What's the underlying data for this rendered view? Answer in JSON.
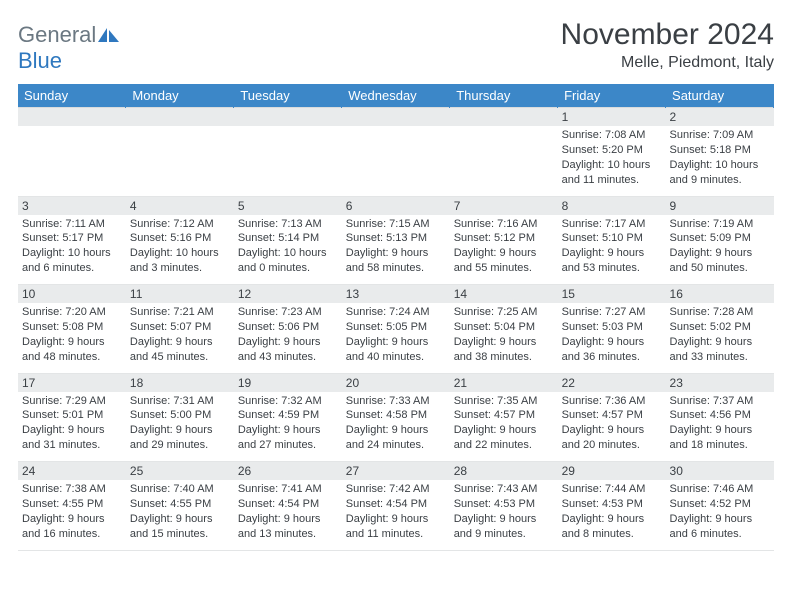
{
  "logo": {
    "text_gray": "General",
    "text_blue": "Blue"
  },
  "title": "November 2024",
  "location": "Melle, Piedmont, Italy",
  "colors": {
    "header_bg": "#3c87c8",
    "header_fg": "#ffffff",
    "daynum_bg": "#e9ebec",
    "text": "#3a3f44",
    "logo_gray": "#6b7882",
    "logo_blue": "#2f78bf"
  },
  "weekdays": [
    "Sunday",
    "Monday",
    "Tuesday",
    "Wednesday",
    "Thursday",
    "Friday",
    "Saturday"
  ],
  "weeks": [
    [
      {
        "n": "",
        "sunrise": "",
        "sunset": "",
        "daylight": ""
      },
      {
        "n": "",
        "sunrise": "",
        "sunset": "",
        "daylight": ""
      },
      {
        "n": "",
        "sunrise": "",
        "sunset": "",
        "daylight": ""
      },
      {
        "n": "",
        "sunrise": "",
        "sunset": "",
        "daylight": ""
      },
      {
        "n": "",
        "sunrise": "",
        "sunset": "",
        "daylight": ""
      },
      {
        "n": "1",
        "sunrise": "Sunrise: 7:08 AM",
        "sunset": "Sunset: 5:20 PM",
        "daylight": "Daylight: 10 hours and 11 minutes."
      },
      {
        "n": "2",
        "sunrise": "Sunrise: 7:09 AM",
        "sunset": "Sunset: 5:18 PM",
        "daylight": "Daylight: 10 hours and 9 minutes."
      }
    ],
    [
      {
        "n": "3",
        "sunrise": "Sunrise: 7:11 AM",
        "sunset": "Sunset: 5:17 PM",
        "daylight": "Daylight: 10 hours and 6 minutes."
      },
      {
        "n": "4",
        "sunrise": "Sunrise: 7:12 AM",
        "sunset": "Sunset: 5:16 PM",
        "daylight": "Daylight: 10 hours and 3 minutes."
      },
      {
        "n": "5",
        "sunrise": "Sunrise: 7:13 AM",
        "sunset": "Sunset: 5:14 PM",
        "daylight": "Daylight: 10 hours and 0 minutes."
      },
      {
        "n": "6",
        "sunrise": "Sunrise: 7:15 AM",
        "sunset": "Sunset: 5:13 PM",
        "daylight": "Daylight: 9 hours and 58 minutes."
      },
      {
        "n": "7",
        "sunrise": "Sunrise: 7:16 AM",
        "sunset": "Sunset: 5:12 PM",
        "daylight": "Daylight: 9 hours and 55 minutes."
      },
      {
        "n": "8",
        "sunrise": "Sunrise: 7:17 AM",
        "sunset": "Sunset: 5:10 PM",
        "daylight": "Daylight: 9 hours and 53 minutes."
      },
      {
        "n": "9",
        "sunrise": "Sunrise: 7:19 AM",
        "sunset": "Sunset: 5:09 PM",
        "daylight": "Daylight: 9 hours and 50 minutes."
      }
    ],
    [
      {
        "n": "10",
        "sunrise": "Sunrise: 7:20 AM",
        "sunset": "Sunset: 5:08 PM",
        "daylight": "Daylight: 9 hours and 48 minutes."
      },
      {
        "n": "11",
        "sunrise": "Sunrise: 7:21 AM",
        "sunset": "Sunset: 5:07 PM",
        "daylight": "Daylight: 9 hours and 45 minutes."
      },
      {
        "n": "12",
        "sunrise": "Sunrise: 7:23 AM",
        "sunset": "Sunset: 5:06 PM",
        "daylight": "Daylight: 9 hours and 43 minutes."
      },
      {
        "n": "13",
        "sunrise": "Sunrise: 7:24 AM",
        "sunset": "Sunset: 5:05 PM",
        "daylight": "Daylight: 9 hours and 40 minutes."
      },
      {
        "n": "14",
        "sunrise": "Sunrise: 7:25 AM",
        "sunset": "Sunset: 5:04 PM",
        "daylight": "Daylight: 9 hours and 38 minutes."
      },
      {
        "n": "15",
        "sunrise": "Sunrise: 7:27 AM",
        "sunset": "Sunset: 5:03 PM",
        "daylight": "Daylight: 9 hours and 36 minutes."
      },
      {
        "n": "16",
        "sunrise": "Sunrise: 7:28 AM",
        "sunset": "Sunset: 5:02 PM",
        "daylight": "Daylight: 9 hours and 33 minutes."
      }
    ],
    [
      {
        "n": "17",
        "sunrise": "Sunrise: 7:29 AM",
        "sunset": "Sunset: 5:01 PM",
        "daylight": "Daylight: 9 hours and 31 minutes."
      },
      {
        "n": "18",
        "sunrise": "Sunrise: 7:31 AM",
        "sunset": "Sunset: 5:00 PM",
        "daylight": "Daylight: 9 hours and 29 minutes."
      },
      {
        "n": "19",
        "sunrise": "Sunrise: 7:32 AM",
        "sunset": "Sunset: 4:59 PM",
        "daylight": "Daylight: 9 hours and 27 minutes."
      },
      {
        "n": "20",
        "sunrise": "Sunrise: 7:33 AM",
        "sunset": "Sunset: 4:58 PM",
        "daylight": "Daylight: 9 hours and 24 minutes."
      },
      {
        "n": "21",
        "sunrise": "Sunrise: 7:35 AM",
        "sunset": "Sunset: 4:57 PM",
        "daylight": "Daylight: 9 hours and 22 minutes."
      },
      {
        "n": "22",
        "sunrise": "Sunrise: 7:36 AM",
        "sunset": "Sunset: 4:57 PM",
        "daylight": "Daylight: 9 hours and 20 minutes."
      },
      {
        "n": "23",
        "sunrise": "Sunrise: 7:37 AM",
        "sunset": "Sunset: 4:56 PM",
        "daylight": "Daylight: 9 hours and 18 minutes."
      }
    ],
    [
      {
        "n": "24",
        "sunrise": "Sunrise: 7:38 AM",
        "sunset": "Sunset: 4:55 PM",
        "daylight": "Daylight: 9 hours and 16 minutes."
      },
      {
        "n": "25",
        "sunrise": "Sunrise: 7:40 AM",
        "sunset": "Sunset: 4:55 PM",
        "daylight": "Daylight: 9 hours and 15 minutes."
      },
      {
        "n": "26",
        "sunrise": "Sunrise: 7:41 AM",
        "sunset": "Sunset: 4:54 PM",
        "daylight": "Daylight: 9 hours and 13 minutes."
      },
      {
        "n": "27",
        "sunrise": "Sunrise: 7:42 AM",
        "sunset": "Sunset: 4:54 PM",
        "daylight": "Daylight: 9 hours and 11 minutes."
      },
      {
        "n": "28",
        "sunrise": "Sunrise: 7:43 AM",
        "sunset": "Sunset: 4:53 PM",
        "daylight": "Daylight: 9 hours and 9 minutes."
      },
      {
        "n": "29",
        "sunrise": "Sunrise: 7:44 AM",
        "sunset": "Sunset: 4:53 PM",
        "daylight": "Daylight: 9 hours and 8 minutes."
      },
      {
        "n": "30",
        "sunrise": "Sunrise: 7:46 AM",
        "sunset": "Sunset: 4:52 PM",
        "daylight": "Daylight: 9 hours and 6 minutes."
      }
    ]
  ]
}
